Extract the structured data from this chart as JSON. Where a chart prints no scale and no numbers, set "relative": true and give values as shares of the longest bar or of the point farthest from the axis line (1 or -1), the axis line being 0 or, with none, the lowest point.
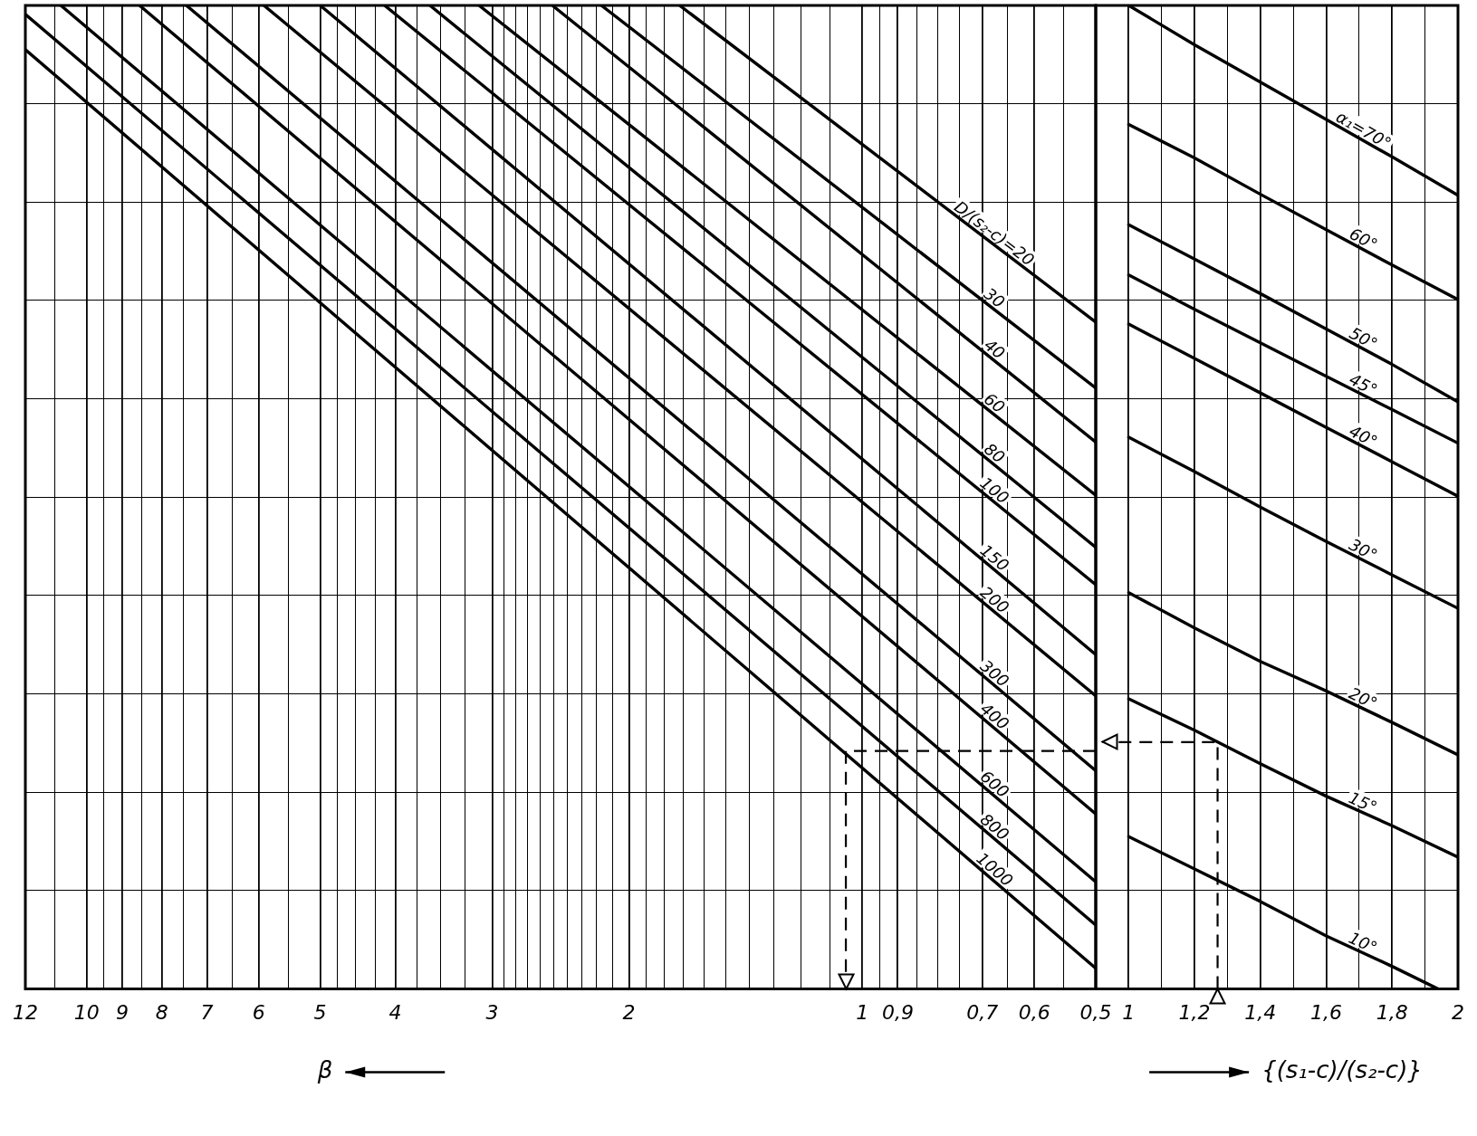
{
  "chart_data": [
    {
      "type": "line",
      "xlabel": "β",
      "log": "x",
      "relative": true,
      "grid": true,
      "xlim": [
        12,
        0.5
      ],
      "xticks": [
        12,
        {
          "value": 11,
          "label": null
        },
        10,
        {
          "value": 9.5,
          "label": null
        },
        9,
        {
          "value": 8.5,
          "label": null
        },
        8,
        {
          "value": 7.5,
          "label": null
        },
        7,
        {
          "value": 6.5,
          "label": null
        },
        6,
        {
          "value": 5.5,
          "label": null
        },
        5,
        {
          "value": 4.75,
          "label": null
        },
        {
          "value": 4.5,
          "label": null
        },
        {
          "value": 4.25,
          "label": null
        },
        4,
        {
          "value": 3.75,
          "label": null
        },
        {
          "value": 3.5,
          "label": null
        },
        {
          "value": 3.25,
          "label": null
        },
        3,
        {
          "value": 2.9,
          "label": null
        },
        {
          "value": 2.8,
          "label": null
        },
        {
          "value": 2.7,
          "label": null
        },
        {
          "value": 2.6,
          "label": null
        },
        {
          "value": 2.5,
          "label": null
        },
        {
          "value": 2.4,
          "label": null
        },
        {
          "value": 2.3,
          "label": null
        },
        {
          "value": 2.2,
          "label": null
        },
        {
          "value": 2.1,
          "label": null
        },
        2,
        {
          "value": 1.9,
          "label": null
        },
        {
          "value": 1.8,
          "label": null
        },
        {
          "value": 1.7,
          "label": null
        },
        {
          "value": 1.6,
          "label": null
        },
        {
          "value": 1.5,
          "label": null
        },
        {
          "value": 1.4,
          "label": null
        },
        {
          "value": 1.3,
          "label": null
        },
        {
          "value": 1.2,
          "label": null
        },
        {
          "value": 1.1,
          "label": null
        },
        1,
        {
          "value": 0.95,
          "label": null
        },
        {
          "value": 0.9,
          "label": "0,9"
        },
        {
          "value": 0.85,
          "label": null
        },
        {
          "value": 0.8,
          "label": null
        },
        {
          "value": 0.75,
          "label": null
        },
        {
          "value": 0.7,
          "label": "0,7"
        },
        {
          "value": 0.65,
          "label": null
        },
        {
          "value": 0.6,
          "label": "0,6"
        },
        {
          "value": 0.55,
          "label": null
        },
        {
          "value": 0.5,
          "label": "0,5"
        }
      ],
      "series": [
        {
          "name": "D/(s₂-c)=20",
          "color": "#000000",
          "x": [
            1.72,
            0.5
          ],
          "values": [
            1,
            0.678
          ]
        },
        {
          "name": "30",
          "color": "#000000",
          "x": [
            2.17,
            0.5
          ],
          "values": [
            1,
            0.611
          ]
        },
        {
          "name": "40",
          "color": "#000000",
          "x": [
            2.51,
            0.5
          ],
          "values": [
            1,
            0.556
          ]
        },
        {
          "name": "60",
          "color": "#000000",
          "x": [
            3.12,
            0.5
          ],
          "values": [
            1,
            0.502
          ]
        },
        {
          "name": "80",
          "color": "#000000",
          "x": [
            3.61,
            0.5
          ],
          "values": [
            1,
            0.449
          ]
        },
        {
          "name": "100",
          "color": "#000000",
          "x": [
            4.13,
            0.5
          ],
          "values": [
            1,
            0.411
          ]
        },
        {
          "name": "150",
          "color": "#000000",
          "x": [
            5.0,
            0.5
          ],
          "values": [
            1,
            0.34
          ]
        },
        {
          "name": "200",
          "color": "#000000",
          "x": [
            5.91,
            0.5
          ],
          "values": [
            1,
            0.298
          ]
        },
        {
          "name": "300",
          "color": "#000000",
          "x": [
            7.44,
            0.5
          ],
          "values": [
            1,
            0.222
          ]
        },
        {
          "name": "400",
          "color": "#000000",
          "x": [
            8.55,
            0.5
          ],
          "values": [
            1,
            0.178
          ]
        },
        {
          "name": "600",
          "color": "#000000",
          "x": [
            10.8,
            0.5
          ],
          "values": [
            1,
            0.109
          ]
        },
        {
          "name": "800",
          "color": "#000000",
          "x": [
            12,
            0.5
          ],
          "values": [
            0.991,
            0.065
          ]
        },
        {
          "name": "1000",
          "color": "#000000",
          "x": [
            12,
            0.5
          ],
          "values": [
            0.955,
            0.021
          ]
        },
        {
          "color": "#000000",
          "line_style": "dashed",
          "x": [
            0.5,
            1.05,
            1.05
          ],
          "values": [
            0.242,
            0.242,
            0
          ]
        }
      ]
    },
    {
      "type": "line",
      "xlabel": "{(s₁-c)/(s₂-c)}",
      "relative": true,
      "grid": true,
      "xlim": [
        0.9,
        2
      ],
      "xticks": [
        1,
        {
          "value": 1.1,
          "label": null
        },
        {
          "value": 1.2,
          "label": "1,2"
        },
        {
          "value": 1.3,
          "label": null
        },
        {
          "value": 1.4,
          "label": "1,4"
        },
        {
          "value": 1.5,
          "label": null
        },
        {
          "value": 1.6,
          "label": "1,6"
        },
        {
          "value": 1.7,
          "label": null
        },
        {
          "value": 1.8,
          "label": "1,8"
        },
        {
          "value": 1.9,
          "label": null
        },
        2
      ],
      "x": [
        1,
        1.2,
        1.4,
        1.6,
        1.8,
        2
      ],
      "series": [
        {
          "name": "α₁=70°",
          "color": "#000000",
          "values": [
            1,
            0.96,
            0.922,
            0.884,
            0.846,
            0.807
          ]
        },
        {
          "name": "60°",
          "color": "#000000",
          "values": [
            0.879,
            0.845,
            0.808,
            0.772,
            0.736,
            0.701
          ]
        },
        {
          "name": "50°",
          "color": "#000000",
          "values": [
            0.777,
            0.742,
            0.707,
            0.671,
            0.635,
            0.597
          ]
        },
        {
          "name": "45°",
          "color": "#000000",
          "values": [
            0.726,
            0.691,
            0.657,
            0.623,
            0.589,
            0.555
          ]
        },
        {
          "name": "40°",
          "color": "#000000",
          "values": [
            0.676,
            0.641,
            0.606,
            0.571,
            0.536,
            0.501
          ]
        },
        {
          "name": "30°",
          "color": "#000000",
          "values": [
            0.561,
            0.526,
            0.49,
            0.455,
            0.421,
            0.387
          ]
        },
        {
          "name": "20°",
          "color": "#000000",
          "values": [
            0.403,
            0.367,
            0.333,
            0.303,
            0.271,
            0.238
          ]
        },
        {
          "name": "15°",
          "color": "#000000",
          "values": [
            0.295,
            0.263,
            0.229,
            0.196,
            0.166,
            0.134
          ]
        },
        {
          "name": "10°",
          "color": "#000000",
          "x": [
            1,
            1.2,
            1.4,
            1.6,
            1.8,
            1.94
          ],
          "values": [
            0.155,
            0.122,
            0.089,
            0.054,
            0.023,
            0
          ]
        },
        {
          "color": "#000000",
          "line_style": "dashed",
          "x": [
            1.27,
            1.27,
            0.92
          ],
          "values": [
            0,
            0.251,
            0.251
          ]
        }
      ]
    }
  ]
}
